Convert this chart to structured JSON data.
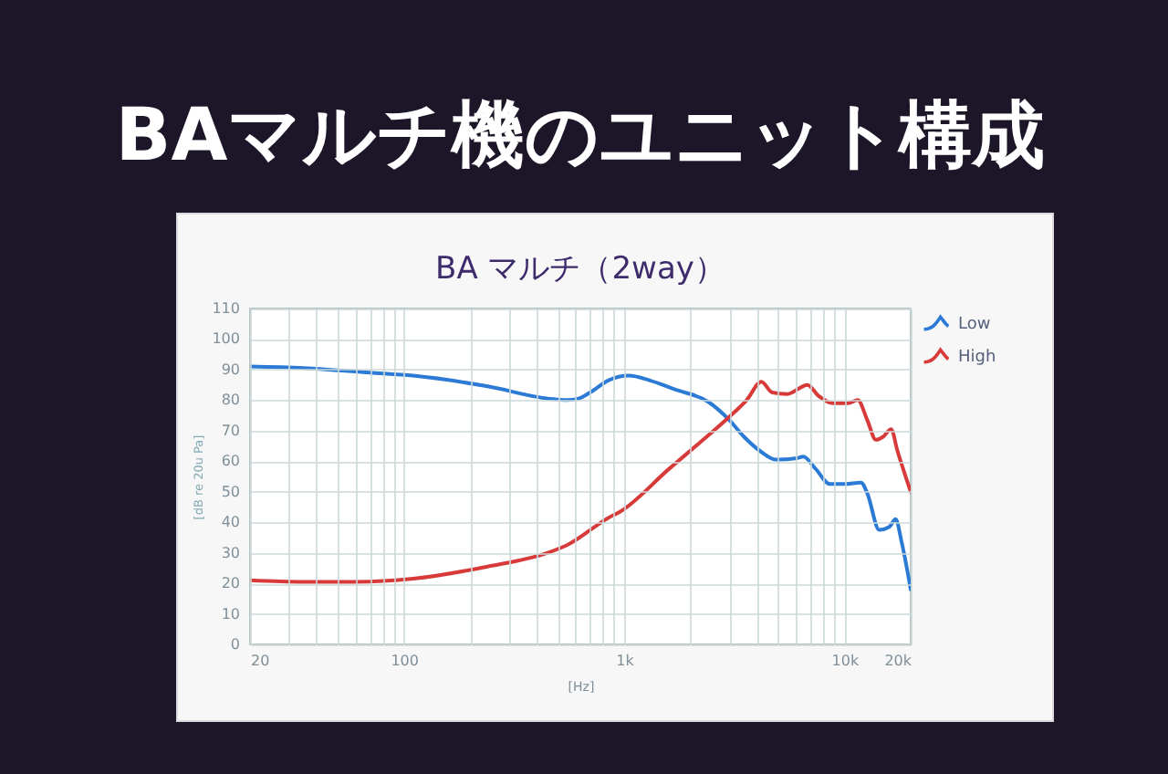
{
  "chart_data": {
    "type": "line",
    "title": "BAマルチ機のユニット構成",
    "subtitle": "BA マルチ（2way）",
    "xlabel": "[Hz]",
    "ylabel": "[dB re 20u Pa]",
    "log": "x",
    "xlim": [
      20,
      20000
    ],
    "xticks": [
      20,
      {
        "value": 30,
        "label": null
      },
      {
        "value": 40,
        "label": null
      },
      {
        "value": 50,
        "label": null
      },
      {
        "value": 60,
        "label": null
      },
      {
        "value": 70,
        "label": null
      },
      {
        "value": 80,
        "label": null
      },
      {
        "value": 90,
        "label": null
      },
      100,
      {
        "value": 200,
        "label": null
      },
      {
        "value": 300,
        "label": null
      },
      {
        "value": 400,
        "label": null
      },
      {
        "value": 500,
        "label": null
      },
      {
        "value": 600,
        "label": null
      },
      {
        "value": 700,
        "label": null
      },
      {
        "value": 800,
        "label": null
      },
      {
        "value": 900,
        "label": null
      },
      {
        "value": 1000,
        "label": "1k"
      },
      {
        "value": 2000,
        "label": null
      },
      {
        "value": 3000,
        "label": null
      },
      {
        "value": 4000,
        "label": null
      },
      {
        "value": 5000,
        "label": null
      },
      {
        "value": 6000,
        "label": null
      },
      {
        "value": 7000,
        "label": null
      },
      {
        "value": 8000,
        "label": null
      },
      {
        "value": 9000,
        "label": null
      },
      {
        "value": 10000,
        "label": "10k"
      },
      {
        "value": 20000,
        "label": "20k"
      }
    ],
    "ylim": [
      0,
      110
    ],
    "yticks": [
      0,
      10,
      20,
      30,
      40,
      50,
      60,
      70,
      80,
      90,
      100,
      110
    ],
    "grid": true,
    "legend": "top right",
    "series": [
      {
        "name": "Low",
        "color": "#2a7ad6",
        "x": [
          20,
          35,
          70,
          110,
          240,
          450,
          550,
          620,
          700,
          850,
          1050,
          1300,
          1700,
          2400,
          3000,
          3500,
          4200,
          4900,
          6100,
          6500,
          7400,
          8600,
          10100,
          11900,
          12700,
          14400,
          16000,
          17100,
          18200,
          20000
        ],
        "values": [
          91,
          90.5,
          89,
          88,
          84.5,
          80.5,
          80,
          80.5,
          82.5,
          86.5,
          88,
          86.5,
          83.5,
          79.5,
          73.5,
          68,
          63,
          60.5,
          61,
          61.5,
          57.5,
          52.5,
          52.5,
          53,
          49.5,
          37.5,
          38.5,
          41,
          33.5,
          18
        ]
      },
      {
        "name": "High",
        "color": "#d83a3a",
        "x": [
          20,
          35,
          60,
          110,
          240,
          450,
          550,
          850,
          960,
          1600,
          2200,
          3000,
          3600,
          4200,
          4700,
          5500,
          6800,
          7600,
          8900,
          10400,
          11500,
          12700,
          13900,
          15000,
          16300,
          17400,
          20000
        ],
        "values": [
          21,
          20.5,
          20.5,
          21.5,
          25.5,
          30,
          32.5,
          41.5,
          43.5,
          57.5,
          66,
          74.5,
          80,
          86,
          82.5,
          82,
          85,
          81.5,
          79,
          79,
          80,
          73.5,
          67,
          68,
          70.5,
          63.5,
          50
        ]
      }
    ]
  }
}
